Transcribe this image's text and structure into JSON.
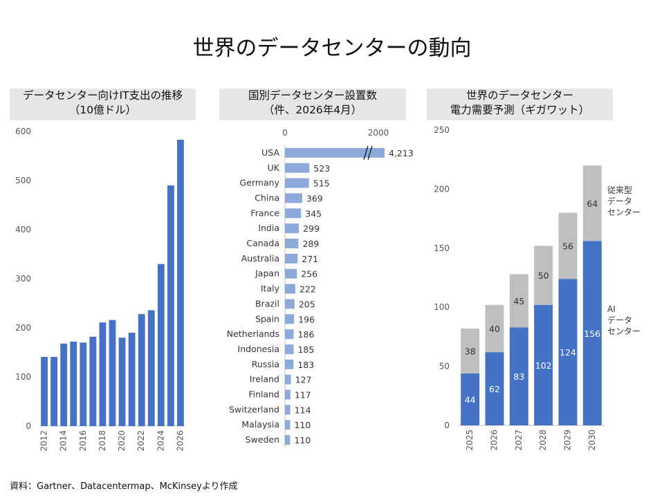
{
  "main_title": "世界のデータセンターの動向",
  "source": "資料：Gartner、Datacentermap、McKinseyより作成",
  "chart_data": [
    {
      "type": "bar",
      "title": "データセンター向けIT支出の推移",
      "subtitle": "（10億ドル）",
      "categories": [
        "2012",
        "2013",
        "2014",
        "2015",
        "2016",
        "2017",
        "2018",
        "2019",
        "2020",
        "2021",
        "2022",
        "2023",
        "2024",
        "2025",
        "2026"
      ],
      "x_tick_labels": [
        "2012",
        "2014",
        "2016",
        "2018",
        "2020",
        "2022",
        "2024",
        "2026"
      ],
      "values": [
        141,
        141,
        168,
        172,
        170,
        182,
        211,
        216,
        180,
        190,
        228,
        236,
        330,
        490,
        583
      ],
      "ylim": [
        0,
        600
      ],
      "y_ticks": [
        0,
        100,
        200,
        300,
        400,
        500,
        600
      ],
      "grid": false,
      "color": "#4472c4"
    },
    {
      "type": "bar",
      "orientation": "horizontal",
      "title": "国別データセンター設置数",
      "subtitle": "（件、2026年4月）",
      "categories": [
        "USA",
        "UK",
        "Germany",
        "China",
        "France",
        "India",
        "Canada",
        "Australia",
        "Japan",
        "Italy",
        "Brazil",
        "Spain",
        "Netherlands",
        "Indonesia",
        "Russia",
        "Ireland",
        "Finland",
        "Switzerland",
        "Malaysia",
        "Sweden"
      ],
      "values": [
        4213,
        523,
        515,
        369,
        345,
        299,
        289,
        271,
        256,
        222,
        205,
        196,
        186,
        185,
        183,
        127,
        117,
        114,
        110,
        110
      ],
      "value_labels": [
        "4,213",
        "523",
        "515",
        "369",
        "345",
        "299",
        "289",
        "271",
        "256",
        "222",
        "205",
        "196",
        "186",
        "185",
        "183",
        "127",
        "117",
        "114",
        "110",
        "110"
      ],
      "x_axis_ticks": [
        0,
        2000
      ],
      "axis_break": "USA",
      "color": "#8eaadb"
    },
    {
      "type": "bar",
      "stacked": true,
      "title": "世界のデータセンター",
      "subtitle": "電力需要予測（ギガワット）",
      "categories": [
        "2025",
        "2026",
        "2027",
        "2028",
        "2029",
        "2030"
      ],
      "series": [
        {
          "name": "AI データ センター",
          "name_lines": [
            "AI",
            "データ",
            "センター"
          ],
          "values": [
            44,
            62,
            83,
            102,
            124,
            156
          ],
          "color": "#4472c4"
        },
        {
          "name": "従来型 データ センター",
          "name_lines": [
            "従来型",
            "データ",
            "センター"
          ],
          "values": [
            38,
            40,
            45,
            50,
            56,
            64
          ],
          "color": "#bfbfbf"
        }
      ],
      "ylim": [
        0,
        250
      ],
      "y_ticks": [
        0,
        50,
        100,
        150,
        200,
        250
      ]
    }
  ]
}
